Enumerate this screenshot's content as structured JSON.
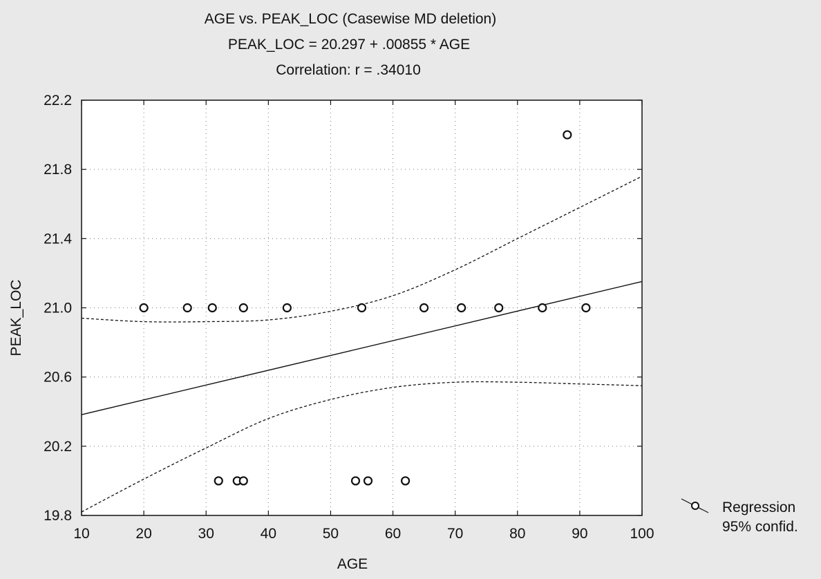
{
  "chart_data": {
    "type": "scatter",
    "title_lines": [
      "AGE vs. PEAK_LOC (Casewise MD deletion)",
      "PEAK_LOC = 20.297 + .00855 * AGE",
      "Correlation: r = .34010"
    ],
    "xlabel": "AGE",
    "ylabel": "PEAK_LOC",
    "xlim": [
      10,
      100
    ],
    "ylim": [
      19.8,
      22.2
    ],
    "x_ticks": [
      "10",
      "20",
      "30",
      "40",
      "50",
      "60",
      "70",
      "80",
      "90",
      "100"
    ],
    "y_ticks": [
      "19.8",
      "20.2",
      "20.6",
      "21.0",
      "21.4",
      "21.8",
      "22.2"
    ],
    "grid": true,
    "points": [
      {
        "x": 20,
        "y": 21.0
      },
      {
        "x": 27,
        "y": 21.0
      },
      {
        "x": 31,
        "y": 21.0
      },
      {
        "x": 36,
        "y": 21.0
      },
      {
        "x": 43,
        "y": 21.0
      },
      {
        "x": 55,
        "y": 21.0
      },
      {
        "x": 65,
        "y": 21.0
      },
      {
        "x": 71,
        "y": 21.0
      },
      {
        "x": 77,
        "y": 21.0
      },
      {
        "x": 84,
        "y": 21.0
      },
      {
        "x": 91,
        "y": 21.0
      },
      {
        "x": 88,
        "y": 22.0
      },
      {
        "x": 32,
        "y": 20.0
      },
      {
        "x": 35,
        "y": 20.0
      },
      {
        "x": 36,
        "y": 20.0
      },
      {
        "x": 54,
        "y": 20.0
      },
      {
        "x": 56,
        "y": 20.0
      },
      {
        "x": 62,
        "y": 20.0
      }
    ],
    "regression": {
      "intercept": 20.297,
      "slope": 0.00855
    },
    "confidence_upper": [
      {
        "x": 10,
        "y": 20.94
      },
      {
        "x": 20,
        "y": 20.92
      },
      {
        "x": 30,
        "y": 20.92
      },
      {
        "x": 40,
        "y": 20.93
      },
      {
        "x": 50,
        "y": 20.98
      },
      {
        "x": 60,
        "y": 21.07
      },
      {
        "x": 70,
        "y": 21.22
      },
      {
        "x": 80,
        "y": 21.4
      },
      {
        "x": 90,
        "y": 21.58
      },
      {
        "x": 100,
        "y": 21.76
      }
    ],
    "confidence_lower": [
      {
        "x": 10,
        "y": 19.82
      },
      {
        "x": 20,
        "y": 20.01
      },
      {
        "x": 30,
        "y": 20.19
      },
      {
        "x": 40,
        "y": 20.36
      },
      {
        "x": 50,
        "y": 20.47
      },
      {
        "x": 60,
        "y": 20.54
      },
      {
        "x": 70,
        "y": 20.57
      },
      {
        "x": 80,
        "y": 20.57
      },
      {
        "x": 90,
        "y": 20.56
      },
      {
        "x": 100,
        "y": 20.55
      }
    ],
    "legend": {
      "position": "bottom-right",
      "entries": [
        "Regression",
        "95% confid."
      ]
    }
  }
}
